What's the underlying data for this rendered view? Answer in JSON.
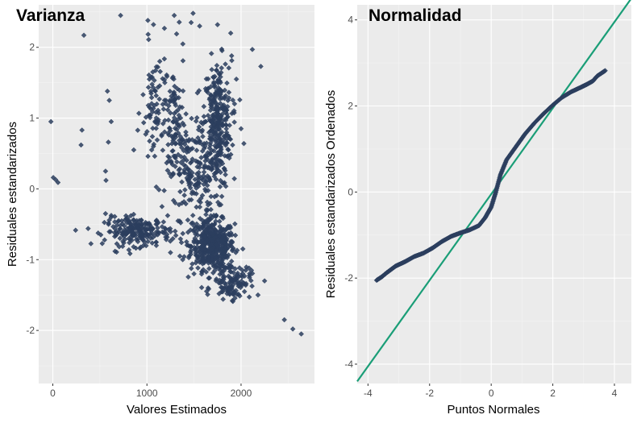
{
  "colors": {
    "panel_bg": "#ebebeb",
    "grid_major": "#ffffff",
    "grid_minor": "#f4f4f4",
    "point": "#2c3e5e",
    "line": "#1a9e77"
  },
  "chart_data": [
    {
      "type": "scatter",
      "title": "Varianza",
      "xlabel": "Valores Estimados",
      "ylabel": "Residuales estandarizados",
      "xlim": [
        -150,
        2780
      ],
      "ylim": [
        -2.75,
        2.6
      ],
      "xticks": [
        0,
        1000,
        2000
      ],
      "yticks": [
        -2,
        -1,
        0,
        1,
        2
      ],
      "grid": true,
      "x": [
        -20,
        5,
        30,
        55,
        330,
        300,
        310,
        580,
        600,
        620,
        560,
        565,
        590,
        720,
        860,
        1010,
        1160,
        1190,
        1290,
        1350,
        1470,
        1490,
        1560,
        1750,
        1890,
        1900,
        1950,
        2000,
        2030,
        2120,
        2210,
        2250,
        2460,
        2550,
        2640,
        2180,
        2050,
        1800,
        1650,
        1500,
        1380,
        1250,
        1100,
        950,
        820,
        700,
        620,
        560
      ],
      "y": [
        0.95,
        0.16,
        0.13,
        0.09,
        2.17,
        0.62,
        0.83,
        1.38,
        1.25,
        0.95,
        0.25,
        0.12,
        0.66,
        2.45,
        0.55,
        2.38,
        -0.25,
        1.5,
        2.45,
        -0.95,
        2.35,
        2.48,
        2.3,
        2.32,
        2.2,
        1.88,
        1.55,
        0.85,
        0.64,
        1.97,
        1.73,
        -1.3,
        -1.85,
        -1.98,
        -2.05,
        -1.5,
        -1.15,
        -1.2,
        -1.4,
        -1.2,
        -1.0,
        -0.9,
        -0.8,
        -0.65,
        -0.55,
        -0.45,
        -0.4,
        -0.35
      ],
      "cluster_note": "",
      "dense_clusters": [
        {
          "x_center": 1700,
          "x_spread": 230,
          "y_center": -0.8,
          "y_spread": 0.35,
          "n": 450
        },
        {
          "x_center": 1750,
          "x_spread": 150,
          "y_center": 0.9,
          "y_spread": 0.9,
          "n": 320
        },
        {
          "x_center": 1500,
          "x_spread": 250,
          "y_center": 0.2,
          "y_spread": 0.9,
          "n": 200
        },
        {
          "x_center": 900,
          "x_spread": 350,
          "y_center": -0.6,
          "y_spread": 0.2,
          "n": 220
        },
        {
          "x_center": 1100,
          "x_spread": 150,
          "y_center": 1.1,
          "y_spread": 0.9,
          "n": 90
        },
        {
          "x_center": 1300,
          "x_spread": 100,
          "y_center": 0.9,
          "y_spread": 1.0,
          "n": 80
        },
        {
          "x_center": 1900,
          "x_spread": 200,
          "y_center": -1.3,
          "y_spread": 0.25,
          "n": 120
        }
      ]
    },
    {
      "type": "scatter",
      "title": "Normalidad",
      "xlabel": "Puntos Normales",
      "ylabel": "Residuales estandarizados Ordenados",
      "xlim": [
        -4.35,
        4.55
      ],
      "ylim": [
        -4.45,
        4.35
      ],
      "xticks": [
        -4,
        -2,
        0,
        2,
        4
      ],
      "yticks": [
        -4,
        -2,
        0,
        2,
        4
      ],
      "grid": true,
      "qq_points": [
        [
          -3.72,
          -2.05
        ],
        [
          -3.55,
          -1.97
        ],
        [
          -3.4,
          -1.88
        ],
        [
          -3.25,
          -1.8
        ],
        [
          -3.1,
          -1.72
        ],
        [
          -2.8,
          -1.62
        ],
        [
          -2.5,
          -1.5
        ],
        [
          -2.2,
          -1.42
        ],
        [
          -1.9,
          -1.3
        ],
        [
          -1.6,
          -1.15
        ],
        [
          -1.3,
          -1.03
        ],
        [
          -1.0,
          -0.95
        ],
        [
          -0.7,
          -0.88
        ],
        [
          -0.4,
          -0.78
        ],
        [
          -0.2,
          -0.6
        ],
        [
          0.0,
          -0.35
        ],
        [
          0.15,
          0.0
        ],
        [
          0.3,
          0.4
        ],
        [
          0.5,
          0.75
        ],
        [
          0.8,
          1.05
        ],
        [
          1.1,
          1.35
        ],
        [
          1.4,
          1.6
        ],
        [
          1.7,
          1.82
        ],
        [
          2.0,
          2.02
        ],
        [
          2.3,
          2.2
        ],
        [
          2.6,
          2.33
        ],
        [
          2.9,
          2.43
        ],
        [
          3.1,
          2.5
        ],
        [
          3.3,
          2.58
        ],
        [
          3.45,
          2.7
        ],
        [
          3.7,
          2.82
        ]
      ],
      "reference_line": {
        "intercept": -0.05,
        "slope": 1.0
      }
    }
  ]
}
